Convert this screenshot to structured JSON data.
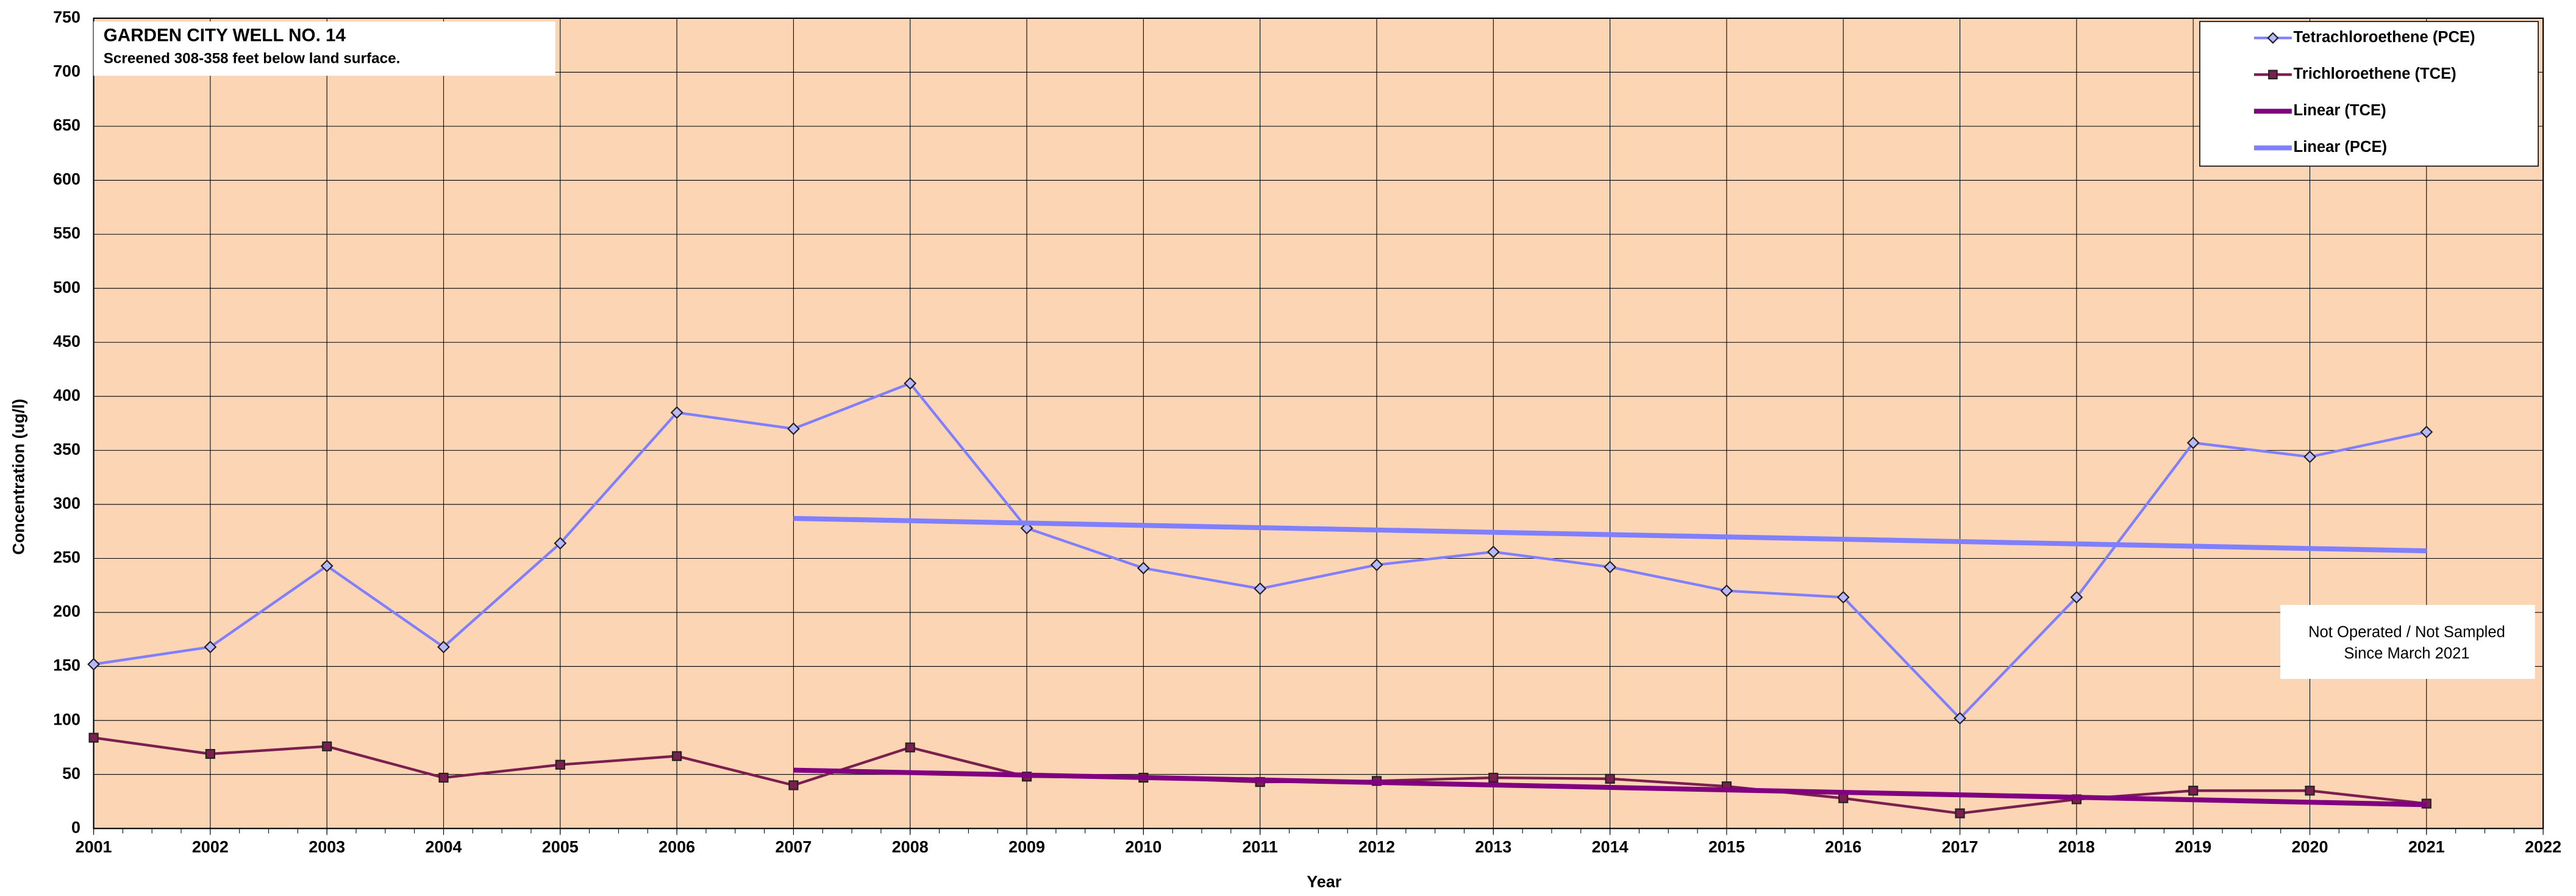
{
  "chart_data": {
    "type": "line",
    "title": "GARDEN CITY WELL NO. 14",
    "subtitle": "Screened 308-358 feet below land surface.",
    "annotation": [
      "Not Operated / Not Sampled",
      "Since March 2021"
    ],
    "x_label": "Year",
    "y_label": "Concentration (ug/l)",
    "x": [
      2001,
      2002,
      2003,
      2004,
      2005,
      2006,
      2007,
      2008,
      2009,
      2010,
      2011,
      2012,
      2013,
      2014,
      2015,
      2016,
      2017,
      2018,
      2019,
      2020,
      2021
    ],
    "series": [
      {
        "name": "Tetrachloroethene (PCE)",
        "color": "#7f7fff",
        "marker": "diamond",
        "values": [
          152,
          168,
          243,
          168,
          264,
          385,
          370,
          412,
          278,
          241,
          222,
          244,
          256,
          242,
          220,
          214,
          102,
          214,
          357,
          344,
          367
        ]
      },
      {
        "name": "Trichloroethene (TCE)",
        "color": "#7a1f4e",
        "marker": "square",
        "values": [
          84,
          69,
          76,
          47,
          59,
          67,
          40,
          75,
          48,
          47,
          43,
          44,
          47,
          46,
          39,
          28,
          14,
          27,
          35,
          35,
          23
        ]
      },
      {
        "name": "Linear (TCE)",
        "color": "#800080",
        "x": [
          2007,
          2021
        ],
        "values": [
          54,
          22
        ]
      },
      {
        "name": "Linear (PCE)",
        "color": "#7f7fff",
        "x": [
          2007,
          2021
        ],
        "values": [
          287,
          257
        ]
      }
    ],
    "xlim": [
      2001,
      2022
    ],
    "xticks": [
      2001,
      2002,
      2003,
      2004,
      2005,
      2006,
      2007,
      2008,
      2009,
      2010,
      2011,
      2012,
      2013,
      2014,
      2015,
      2016,
      2017,
      2018,
      2019,
      2020,
      2021,
      2022
    ],
    "ylim": [
      0,
      750
    ],
    "yticks": [
      0,
      50,
      100,
      150,
      200,
      250,
      300,
      350,
      400,
      450,
      500,
      550,
      600,
      650,
      700,
      750
    ],
    "grid": true,
    "legend": "top-right",
    "background": "#fcd5b4"
  }
}
